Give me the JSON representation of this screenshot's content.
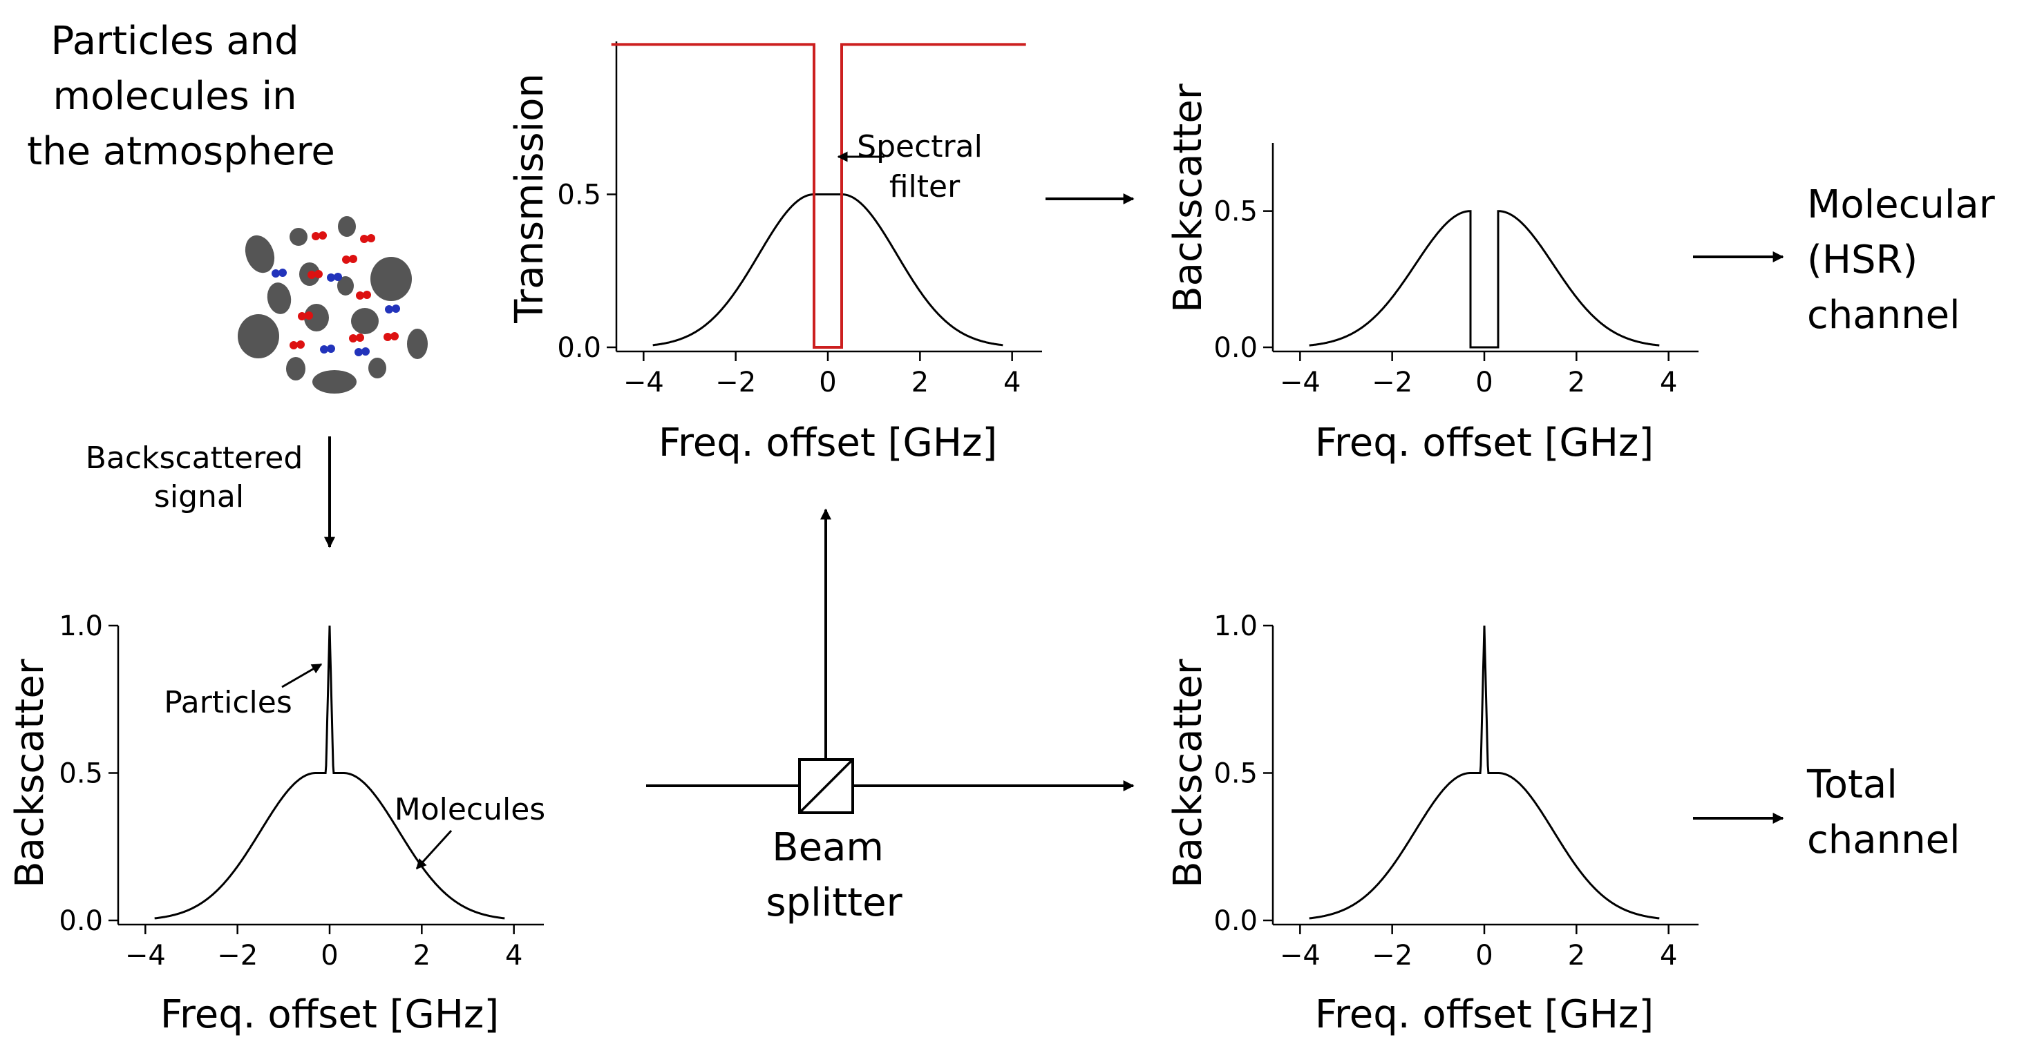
{
  "texts": {
    "atmosphere_title": [
      "Particles and",
      "molecules in",
      "the atmosphere"
    ],
    "backscattered_signal": [
      "Backscattered",
      "signal"
    ],
    "beam_splitter": [
      "Beam",
      "splitter"
    ],
    "molecular_channel": [
      "Molecular",
      "(HSR)",
      "channel"
    ],
    "total_channel": [
      "Total",
      "channel"
    ],
    "spectral_filter": [
      "Spectral",
      "filter"
    ],
    "particles": "Particles",
    "molecules": "Molecules"
  },
  "colors": {
    "filter_line": "#cc1f1f",
    "particle_gray": "#555555",
    "molecule_red": "#dd1111",
    "molecule_blue": "#2233bb"
  },
  "chart_data": [
    {
      "id": "filter",
      "type": "line",
      "xlabel": "Freq. offset [GHz]",
      "ylabel": "Transmission",
      "xlim": [
        -4.5,
        4.5
      ],
      "ylim": [
        0,
        1.0
      ],
      "xticks": [
        -4,
        -2,
        0,
        2,
        4
      ],
      "xtick_labels": [
        "−4",
        "−2",
        "0",
        "2",
        "4"
      ],
      "yticks": [
        0.0,
        0.5
      ],
      "ytick_labels": [
        "0.0",
        "0.5"
      ],
      "grid": false,
      "series": [
        {
          "role": "spectrum",
          "x_range": [
            -3.8,
            3.8
          ],
          "molecular_peak": 0.5,
          "molecular_sigma": 1.2,
          "particle_peak": 0.5,
          "notch_halfwidth": 0
        },
        {
          "role": "filter",
          "x": [
            -4.7,
            -0.3,
            -0.3,
            0.3,
            0.3,
            4.3
          ],
          "y": [
            0.99,
            0.99,
            0.0,
            0.0,
            0.99,
            0.99
          ]
        }
      ]
    },
    {
      "id": "molecular",
      "type": "line",
      "xlabel": "Freq. offset [GHz]",
      "ylabel": "Backscatter",
      "xlim": [
        -4.5,
        4.5
      ],
      "ylim": [
        0,
        0.75
      ],
      "xticks": [
        -4,
        -2,
        0,
        2,
        4
      ],
      "xtick_labels": [
        "−4",
        "−2",
        "0",
        "2",
        "4"
      ],
      "yticks": [
        0.0,
        0.5
      ],
      "ytick_labels": [
        "0.0",
        "0.5"
      ],
      "grid": false,
      "series": [
        {
          "role": "spectrum",
          "x_range": [
            -3.8,
            3.8
          ],
          "molecular_peak": 0.5,
          "molecular_sigma": 1.2,
          "particle_peak": 0,
          "notch_halfwidth": 0.3
        }
      ]
    },
    {
      "id": "input",
      "type": "line",
      "xlabel": "Freq. offset [GHz]",
      "ylabel": "Backscatter",
      "xlim": [
        -4.5,
        4.5
      ],
      "ylim": [
        0,
        1.0
      ],
      "xticks": [
        -4,
        -2,
        0,
        2,
        4
      ],
      "xtick_labels": [
        "−4",
        "−2",
        "0",
        "2",
        "4"
      ],
      "yticks": [
        0.0,
        0.5,
        1.0
      ],
      "ytick_labels": [
        "0.0",
        "0.5",
        "1.0"
      ],
      "grid": false,
      "series": [
        {
          "role": "spectrum",
          "x_range": [
            -3.8,
            3.8
          ],
          "molecular_peak": 0.5,
          "molecular_sigma": 1.2,
          "particle_peak": 1.0,
          "notch_halfwidth": 0
        }
      ]
    },
    {
      "id": "total",
      "type": "line",
      "xlabel": "Freq. offset [GHz]",
      "ylabel": "Backscatter",
      "xlim": [
        -4.5,
        4.5
      ],
      "ylim": [
        0,
        1.0
      ],
      "xticks": [
        -4,
        -2,
        0,
        2,
        4
      ],
      "xtick_labels": [
        "−4",
        "−2",
        "0",
        "2",
        "4"
      ],
      "yticks": [
        0.0,
        0.5,
        1.0
      ],
      "ytick_labels": [
        "0.0",
        "0.5",
        "1.0"
      ],
      "grid": false,
      "series": [
        {
          "role": "spectrum",
          "x_range": [
            -3.8,
            3.8
          ],
          "molecular_peak": 0.5,
          "molecular_sigma": 1.2,
          "particle_peak": 1.0,
          "notch_halfwidth": 0
        }
      ]
    }
  ]
}
